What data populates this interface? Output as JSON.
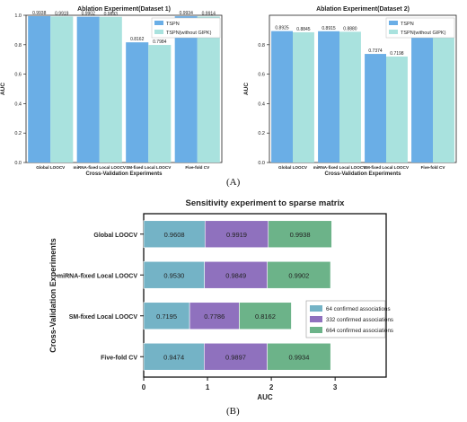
{
  "colors": {
    "tspn": "#6aaee6",
    "tspn_without_gipk": "#a9e2de",
    "s64": "#74b3c6",
    "s332": "#8f71be",
    "s664": "#6cb389"
  },
  "captions": {
    "a": "(A)",
    "b": "(B)"
  },
  "chart_data": [
    {
      "type": "bar",
      "title": "Ablation Experiment(Dataset 1)",
      "xlabel": "Cross-Validation Experiments",
      "ylabel": "AUC",
      "ylim": [
        0,
        1.0
      ],
      "yticks": [
        "0.0",
        "0.2",
        "0.4",
        "0.6",
        "0.8",
        "1.0"
      ],
      "categories": [
        "Global LOOCV",
        "miRNA-fixed Local LOOCV",
        "SM-fixed Local LOOCV",
        "Five-fold CV"
      ],
      "legend_position": "top-right",
      "series": [
        {
          "name": "TSPN",
          "values": [
            0.9938,
            0.9902,
            0.8162,
            0.9934
          ],
          "labels": [
            "0.9938",
            "0.9902",
            "0.8162",
            "0.9934"
          ]
        },
        {
          "name": "TSPN(without GIPK)",
          "values": [
            0.9919,
            0.9893,
            0.7984,
            0.9914
          ],
          "labels": [
            "0.9919",
            "0.9893",
            "0.7984",
            "0.9914"
          ]
        }
      ]
    },
    {
      "type": "bar",
      "title": "Ablation Experiment(Dataset 2)",
      "xlabel": "Cross-Validation Experiments",
      "ylabel": "AUC",
      "ylim": [
        0,
        1.0
      ],
      "yticks": [
        "0.0",
        "0.2",
        "0.4",
        "0.6",
        "0.8"
      ],
      "categories": [
        "Global LOOCV",
        "miRNA-fixed Local LOOCV",
        "SM-fixed Local LOOCV",
        "Five-fold CV"
      ],
      "legend_position": "top-right",
      "series": [
        {
          "name": "TSPN",
          "values": [
            0.8925,
            0.8915,
            0.7374,
            0.8834
          ],
          "labels": [
            "0.8925",
            "0.8915",
            "0.7374",
            "0.8834"
          ]
        },
        {
          "name": "TSPN(without GIPK)",
          "values": [
            0.8845,
            0.888,
            0.7198,
            0.8751
          ],
          "labels": [
            "0.8845",
            "0.8880",
            "0.7198",
            "0.8751"
          ]
        }
      ]
    },
    {
      "type": "bar",
      "orientation": "horizontal",
      "stacked": true,
      "title": "Sensitivity experiment to sparse matrix",
      "xlabel": "AUC",
      "ylabel": "Cross-Validation Experiments",
      "xlim": [
        0,
        3.8
      ],
      "xticks": [
        "0",
        "1",
        "2",
        "3"
      ],
      "categories": [
        "Global LOOCV",
        "miRNA-fixed Local LOOCV",
        "SM-fixed Local LOOCV",
        "Five-fold CV"
      ],
      "legend_position": "right",
      "series": [
        {
          "name": "64 confirmed associations",
          "values": [
            0.9608,
            0.953,
            0.7195,
            0.9474
          ],
          "labels": [
            "0.9608",
            "0.9530",
            "0.7195",
            "0.9474"
          ]
        },
        {
          "name": "332 confirmed associations",
          "values": [
            0.9919,
            0.9849,
            0.7786,
            0.9897
          ],
          "labels": [
            "0.9919",
            "0.9849",
            "0.7786",
            "0.9897"
          ]
        },
        {
          "name": "664 confirmed associations",
          "values": [
            0.9938,
            0.9902,
            0.8162,
            0.9934
          ],
          "labels": [
            "0.9938",
            "0.9902",
            "0.8162",
            "0.9934"
          ]
        }
      ]
    }
  ]
}
